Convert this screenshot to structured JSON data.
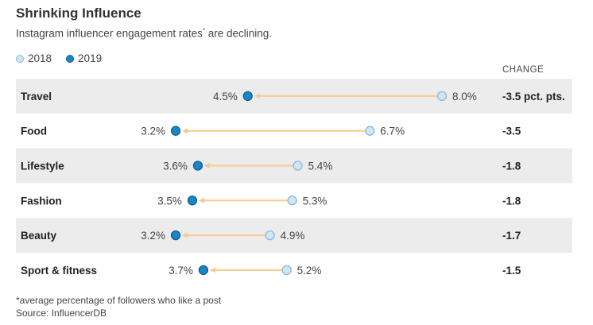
{
  "title": "Shrinking Influence",
  "subtitle": "Instagram influencer engagement rates",
  "subtitle_mark": "*",
  "subtitle_tail": " are declining.",
  "legend": {
    "first": "2018",
    "second": "2019"
  },
  "change_header": "CHANGE",
  "footnote": "*average percentage of followers who like a post",
  "source": "Source: InfluencerDB",
  "colors": {
    "dot_2018_fill": "#cfe6f6",
    "dot_2018_stroke": "#8fb7d8",
    "dot_2019_fill": "#1a86c7",
    "dot_2019_stroke": "#0f5f94",
    "arrow": "#f7c98c",
    "band": "#ececec"
  },
  "chart_data": {
    "type": "dot-arrow",
    "x_unit": "%",
    "series": [
      {
        "name": "2018",
        "values": [
          8.0,
          6.7,
          5.4,
          5.3,
          4.9,
          5.2
        ]
      },
      {
        "name": "2019",
        "values": [
          4.5,
          3.2,
          3.6,
          3.5,
          3.2,
          3.7
        ]
      }
    ],
    "rows": [
      {
        "category": "Travel",
        "v2018": 8.0,
        "v2019": 4.5,
        "label2018": "8.0%",
        "label2019": "4.5%",
        "change": "-3.5 pct. pts."
      },
      {
        "category": "Food",
        "v2018": 6.7,
        "v2019": 3.2,
        "label2018": "6.7%",
        "label2019": "3.2%",
        "change": "-3.5"
      },
      {
        "category": "Lifestyle",
        "v2018": 5.4,
        "v2019": 3.6,
        "label2018": "5.4%",
        "label2019": "3.6%",
        "change": "-1.8"
      },
      {
        "category": "Fashion",
        "v2018": 5.3,
        "v2019": 3.5,
        "label2018": "5.3%",
        "label2019": "3.5%",
        "change": "-1.8"
      },
      {
        "category": "Beauty",
        "v2018": 4.9,
        "v2019": 3.2,
        "label2018": "4.9%",
        "label2019": "3.2%",
        "change": "-1.7"
      },
      {
        "category": "Sport & fitness",
        "v2018": 5.2,
        "v2019": 3.7,
        "label2018": "5.2%",
        "label2019": "3.7%",
        "change": "-1.5"
      }
    ]
  }
}
